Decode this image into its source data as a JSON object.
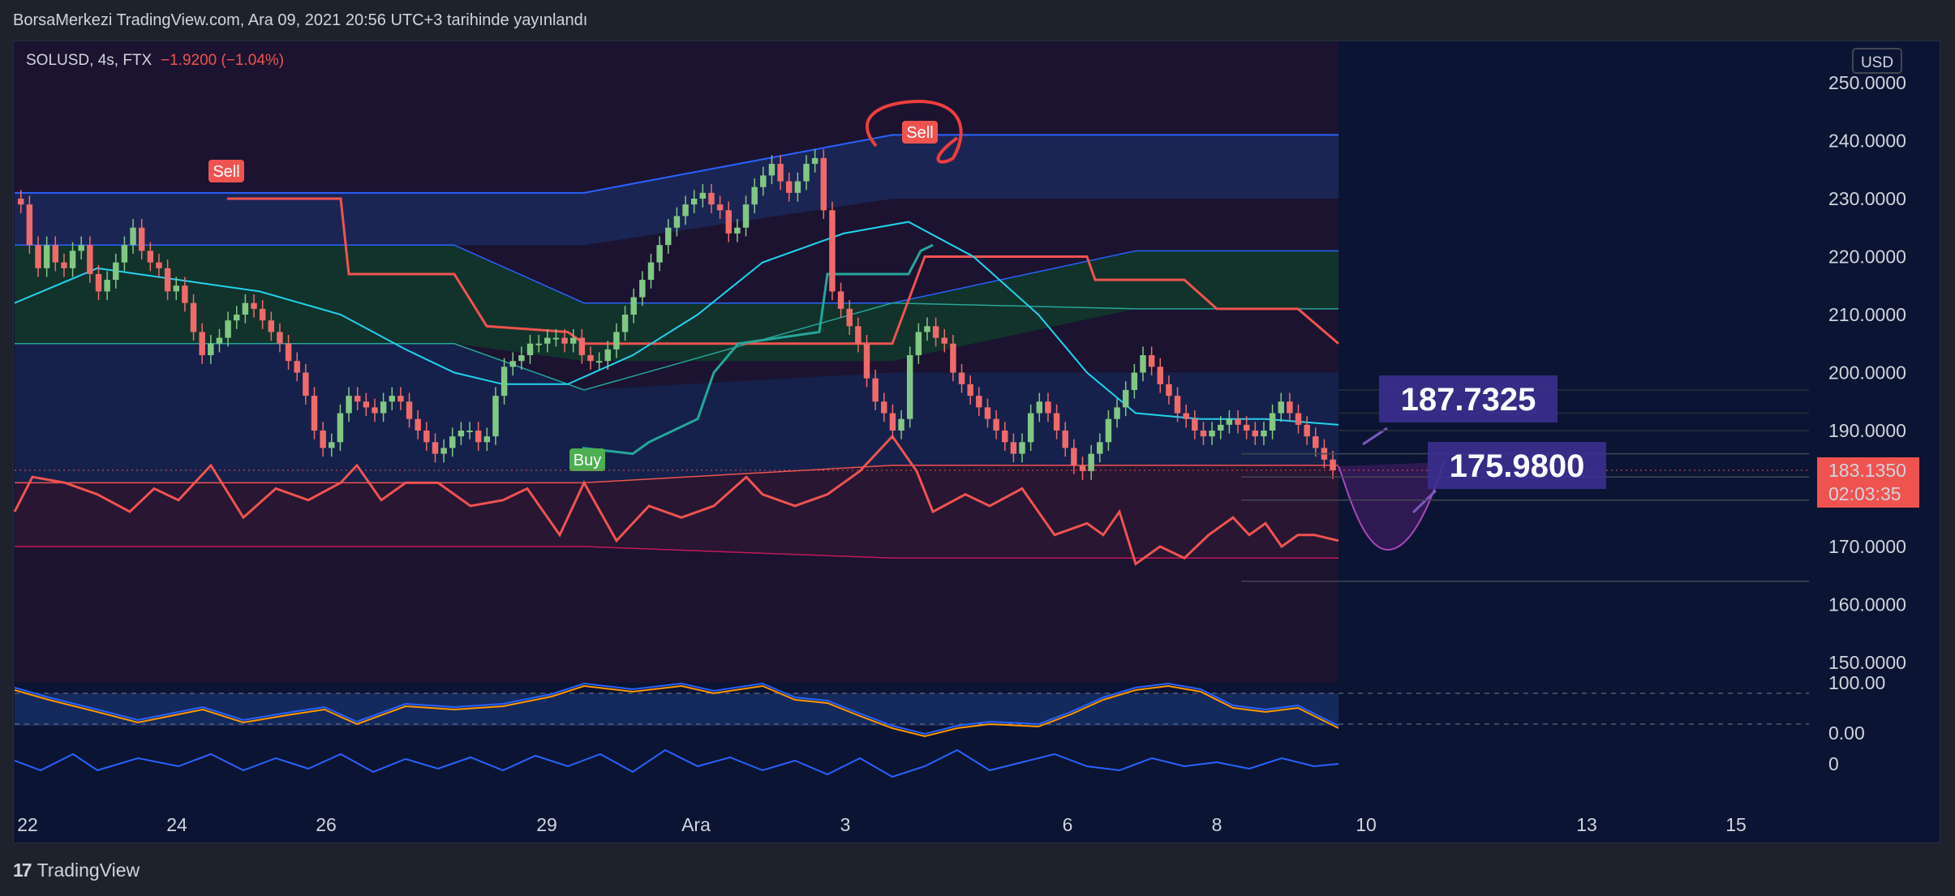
{
  "header": {
    "text": "BorsaMerkezi TradingView.com, Ara 09, 2021 20:56 UTC+3 tarihinde yayınlandı"
  },
  "legend": {
    "symbol": "SOLUSD, 4s, FTX",
    "change": "−1.9200 (−1.04%)"
  },
  "currency_button": "USD",
  "footer": {
    "logo_mark": "17",
    "brand": "TradingView"
  },
  "colors": {
    "up": "#26a69a",
    "down": "#ef5350",
    "background": "#0b1433",
    "accent": "#2962ff"
  },
  "chart_data": {
    "type": "candlestick",
    "y_ticks": [
      "250.0000",
      "240.0000",
      "230.0000",
      "220.0000",
      "210.0000",
      "200.0000",
      "190.0000",
      "170.0000",
      "160.0000",
      "150.0000"
    ],
    "x_ticks": [
      "22",
      "24",
      "26",
      "29",
      "Ara",
      "3",
      "6",
      "8",
      "10",
      "13",
      "15"
    ],
    "ylim": [
      145,
      255
    ],
    "price_axis_range": [
      142,
      254
    ],
    "current_price": "183.1350",
    "countdown": "02:03:35",
    "signals": [
      {
        "label": "Sell",
        "date": "Nov 24"
      },
      {
        "label": "Buy",
        "date": "Nov 29"
      },
      {
        "label": "Sell",
        "date": "Dec 3"
      }
    ],
    "annotations": [
      {
        "text": "187.7325"
      },
      {
        "text": "175.9800"
      }
    ],
    "indicator_ticks": [
      "100.00",
      "0.00",
      "0"
    ],
    "close_series": [
      229,
      222,
      218,
      222,
      219,
      218,
      221,
      222,
      217,
      214,
      216,
      219,
      222,
      225,
      221,
      219,
      218,
      214,
      215,
      212,
      207,
      203,
      205,
      206,
      209,
      210,
      212,
      211,
      209,
      207,
      205,
      202,
      200,
      196,
      190,
      187,
      188,
      193,
      196,
      195,
      194,
      193,
      195,
      196,
      195,
      192,
      190,
      188,
      186,
      187,
      189,
      190,
      190,
      188,
      189,
      196,
      201,
      202,
      203,
      205,
      205,
      206,
      206,
      205,
      206,
      203,
      202,
      202,
      204,
      207,
      210,
      213,
      216,
      219,
      222,
      225,
      227,
      229,
      230,
      231,
      229,
      228,
      224,
      225,
      229,
      232,
      234,
      236,
      233,
      231,
      233,
      236,
      237,
      228,
      214,
      211,
      208,
      205,
      199,
      195,
      193,
      190,
      192,
      203,
      207,
      208,
      206,
      205,
      200,
      198,
      196,
      194,
      192,
      190,
      188,
      186,
      188,
      193,
      195,
      193,
      190,
      187,
      184,
      183,
      186,
      188,
      192,
      194,
      197,
      200,
      203,
      201,
      198,
      196,
      193,
      192,
      190,
      189,
      190,
      191,
      192,
      191,
      190,
      189,
      190,
      193,
      195,
      193,
      191,
      189,
      187,
      185,
      183.135
    ],
    "series": [
      {
        "name": "Sell stop band",
        "color": "#ef5350"
      },
      {
        "name": "Buy stop band",
        "color": "#26a69a"
      },
      {
        "name": "Moving average",
        "color": "#22d3ee"
      },
      {
        "name": "Lower oscillator",
        "color": "#ef5350"
      }
    ]
  }
}
